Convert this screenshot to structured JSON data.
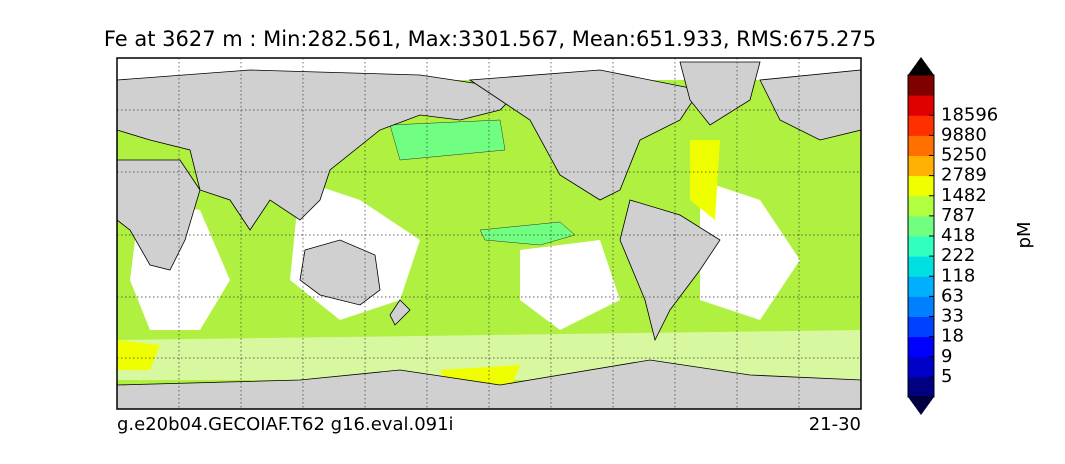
{
  "title": "Fe at 3627 m : Min:282.561, Max:3301.567, Mean:651.933, RMS:675.275",
  "footer": {
    "left": "g.e20b04.GECOIAF.T62 g16.eval.091i",
    "right": "21-30"
  },
  "colorbar": {
    "label": "pM",
    "ticks": [
      5,
      9,
      18,
      33,
      63,
      118,
      222,
      418,
      787,
      1482,
      2789,
      5250,
      9880,
      18596
    ],
    "colors": [
      "#000080",
      "#0000c8",
      "#0000ff",
      "#0040ff",
      "#0080ff",
      "#00b0ff",
      "#00e0e0",
      "#30ffc0",
      "#70ff80",
      "#b0ff40",
      "#f0ff00",
      "#ffb000",
      "#ff7000",
      "#ff3000",
      "#e00000",
      "#800000"
    ],
    "under": "#000040",
    "over": "#000000"
  }
}
